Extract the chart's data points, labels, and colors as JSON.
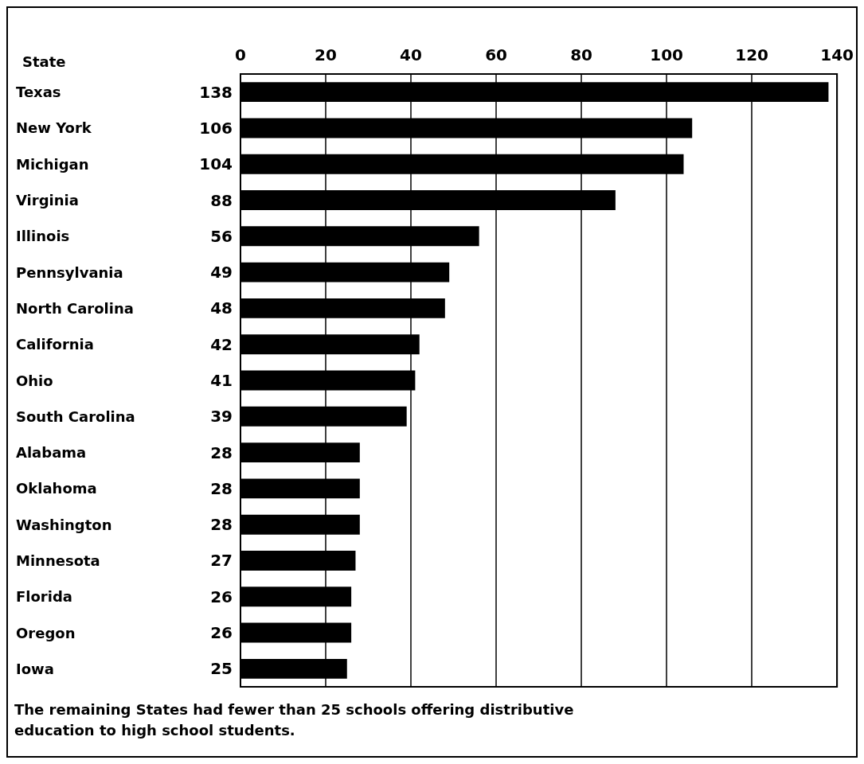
{
  "chart_data": {
    "type": "bar",
    "orientation": "horizontal",
    "ylabel": "State",
    "categories": [
      "Texas",
      "New York",
      "Michigan",
      "Virginia",
      "Illinois",
      "Pennsylvania",
      "North Carolina",
      "California",
      "Ohio",
      "South Carolina",
      "Alabama",
      "Oklahoma",
      "Washington",
      "Minnesota",
      "Florida",
      "Oregon",
      "Iowa"
    ],
    "values": [
      138,
      106,
      104,
      88,
      56,
      49,
      48,
      42,
      41,
      39,
      28,
      28,
      28,
      27,
      26,
      26,
      25
    ],
    "color": "#000000",
    "xlim": [
      0,
      140
    ],
    "xticks": [
      0,
      20,
      40,
      60,
      80,
      100,
      120,
      140
    ],
    "grid": "x",
    "data_labels": true,
    "annotations": [
      "The remaining States had fewer than 25 schools offering distributive education to high school students."
    ]
  }
}
